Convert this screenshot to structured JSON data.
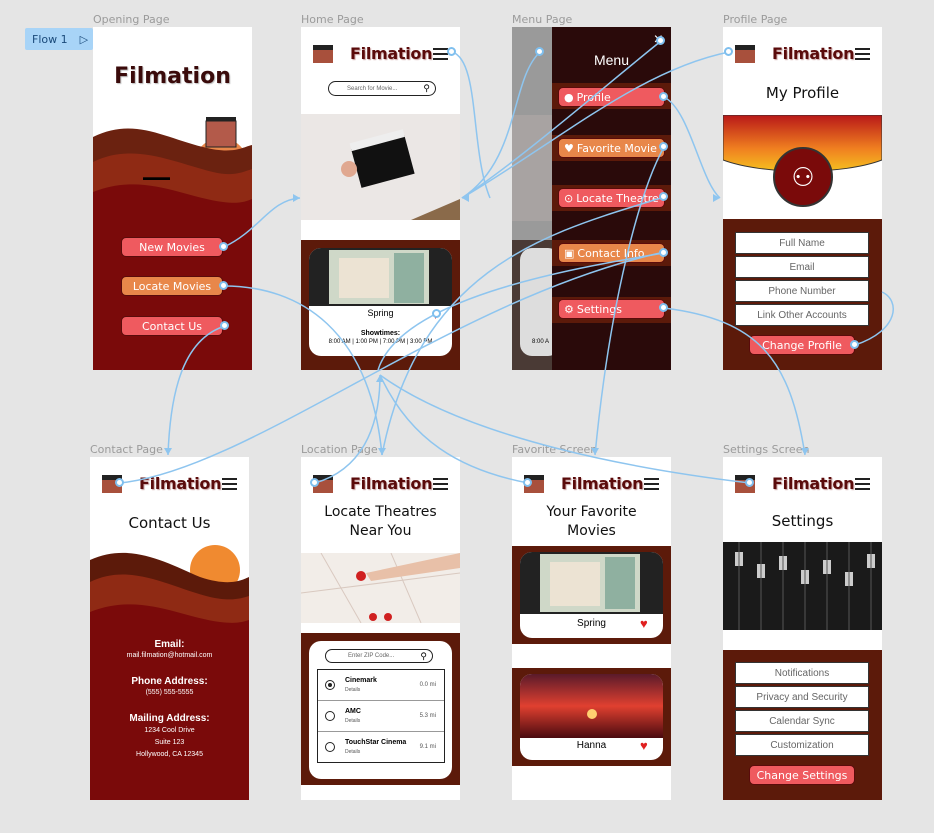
{
  "flow": {
    "label": "Flow 1"
  },
  "labels": {
    "opening": "Opening Page",
    "home": "Home Page",
    "menu": "Menu Page",
    "profile": "Profile Page",
    "contact": "Contact Page",
    "location": "Location Page",
    "favorite": "Favorite Screen",
    "settings": "Settings Screen"
  },
  "brand": "Filmation",
  "opening": {
    "title": "Filmation",
    "buttons": [
      "New Movies",
      "Locate Movies",
      "Contact Us"
    ]
  },
  "home": {
    "search_placeholder": "Search for Movie...",
    "movie": "Spring",
    "showtimes_label": "Showtimes:",
    "showtimes": "8:00 AM | 1:00 PM | 7:00 PM | 3:00 PM"
  },
  "menu": {
    "title": "Menu",
    "items": [
      "Profile",
      "Favorite Movie",
      "Locate Theatre",
      "Contact Info",
      "Settings"
    ],
    "close": "×",
    "peek": "8:00 A"
  },
  "profile": {
    "title": "My Profile",
    "fields": [
      "Full Name",
      "Email",
      "Phone Number",
      "Link Other Accounts"
    ],
    "button": "Change Profile"
  },
  "contact": {
    "title": "Contact Us",
    "email_label": "Email:",
    "email": "mail.filmation@hotmail.com",
    "phone_label": "Phone Address:",
    "phone": "(555) 555-5555",
    "mail_label": "Mailing Address:",
    "mail1": "1234 Cool Drive",
    "mail2": "Suite 123",
    "mail3": "Hollywood, CA 12345"
  },
  "location": {
    "title1": "Locate Theatres",
    "title2": "Near You",
    "zip_placeholder": "Enter ZIP Code...",
    "theatres": [
      {
        "name": "Cinemark",
        "details": "Details",
        "dist": "0.0 mi"
      },
      {
        "name": "AMC",
        "details": "Details",
        "dist": "5.3 mi"
      },
      {
        "name": "TouchStar Cinema",
        "details": "Details",
        "dist": "9.1 mi"
      }
    ]
  },
  "favorite": {
    "title1": "Your Favorite",
    "title2": "Movies",
    "movies": [
      "Spring",
      "Hanna"
    ]
  },
  "settings": {
    "title": "Settings",
    "items": [
      "Notifications",
      "Privacy and Security",
      "Calendar Sync",
      "Customization"
    ],
    "button": "Change Settings"
  },
  "colors": {
    "maroon": "#7a0a0a",
    "dark": "#5c1a0a",
    "accent": "#ef5a5f",
    "orange": "#e8874a",
    "flow": "#8ec5ef"
  }
}
